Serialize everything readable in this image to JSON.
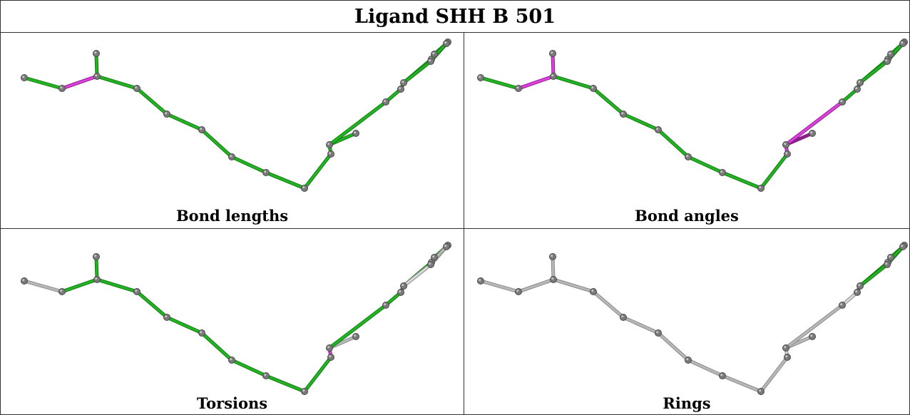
{
  "title": "Ligand SHH B 501",
  "colors": {
    "good": "#22b522",
    "good_dark": "#167a16",
    "outlier": "#e040e0",
    "outlier_dark": "#8a1f8a",
    "unused": "#b8b8b8",
    "unused_light": "#d8d8d8",
    "atom": "#7a7a7a"
  },
  "molecule": {
    "atoms": [
      {
        "id": 0
      },
      {
        "id": 1
      },
      {
        "id": 2
      },
      {
        "id": 3
      },
      {
        "id": 4
      },
      {
        "id": 5
      },
      {
        "id": 6
      },
      {
        "id": 7
      },
      {
        "id": 8
      },
      {
        "id": 9
      },
      {
        "id": 10
      },
      {
        "id": 11
      },
      {
        "id": 12
      },
      {
        "id": 13
      },
      {
        "id": 14
      },
      {
        "id": 15
      },
      {
        "id": 16
      },
      {
        "id": 17
      },
      {
        "id": 18
      },
      {
        "id": 19
      },
      {
        "id": 20
      }
    ],
    "bonds": [
      [
        0,
        1
      ],
      [
        1,
        2
      ],
      [
        2,
        3
      ],
      [
        2,
        4
      ],
      [
        4,
        5
      ],
      [
        5,
        6
      ],
      [
        6,
        7
      ],
      [
        7,
        8
      ],
      [
        8,
        9
      ],
      [
        9,
        10
      ],
      [
        10,
        11
      ],
      [
        11,
        12
      ],
      [
        11,
        13
      ],
      [
        13,
        14
      ],
      [
        14,
        15
      ],
      [
        15,
        16
      ],
      [
        16,
        17
      ],
      [
        17,
        18
      ],
      [
        18,
        19
      ],
      [
        19,
        20
      ],
      [
        15,
        18
      ],
      [
        16,
        20
      ]
    ]
  },
  "panels": [
    {
      "caption": "Bond lengths",
      "bond_status": [
        "good",
        "outlier",
        "good",
        "good",
        "good",
        "good",
        "good",
        "good",
        "good",
        "good",
        "good",
        "good",
        "good",
        "good",
        "good",
        "good",
        "good",
        "good",
        "good",
        "good",
        "good",
        "good"
      ]
    },
    {
      "caption": "Bond angles",
      "bond_status": [
        "good",
        "outlier",
        "outlier",
        "good",
        "good",
        "good",
        "good",
        "good",
        "good",
        "good",
        "outlier",
        "outlier_dark",
        "outlier",
        "good",
        "good",
        "good",
        "good",
        "good",
        "good",
        "good",
        "good",
        "good"
      ]
    },
    {
      "caption": "Torsions",
      "bond_status": [
        "unused",
        "good",
        "good",
        "good",
        "good",
        "good",
        "good",
        "good",
        "good",
        "good",
        "outlier",
        "unused",
        "good",
        "good",
        "good",
        "good",
        "unused",
        "unused",
        "good",
        "good",
        "unused_light",
        "unused"
      ]
    },
    {
      "caption": "Rings",
      "bond_status": [
        "unused",
        "unused",
        "unused",
        "unused",
        "unused",
        "unused",
        "unused",
        "unused",
        "unused",
        "unused",
        "unused_light",
        "unused",
        "unused",
        "unused_light",
        "good",
        "good",
        "good",
        "good",
        "good",
        "good",
        "good",
        "good"
      ]
    }
  ]
}
